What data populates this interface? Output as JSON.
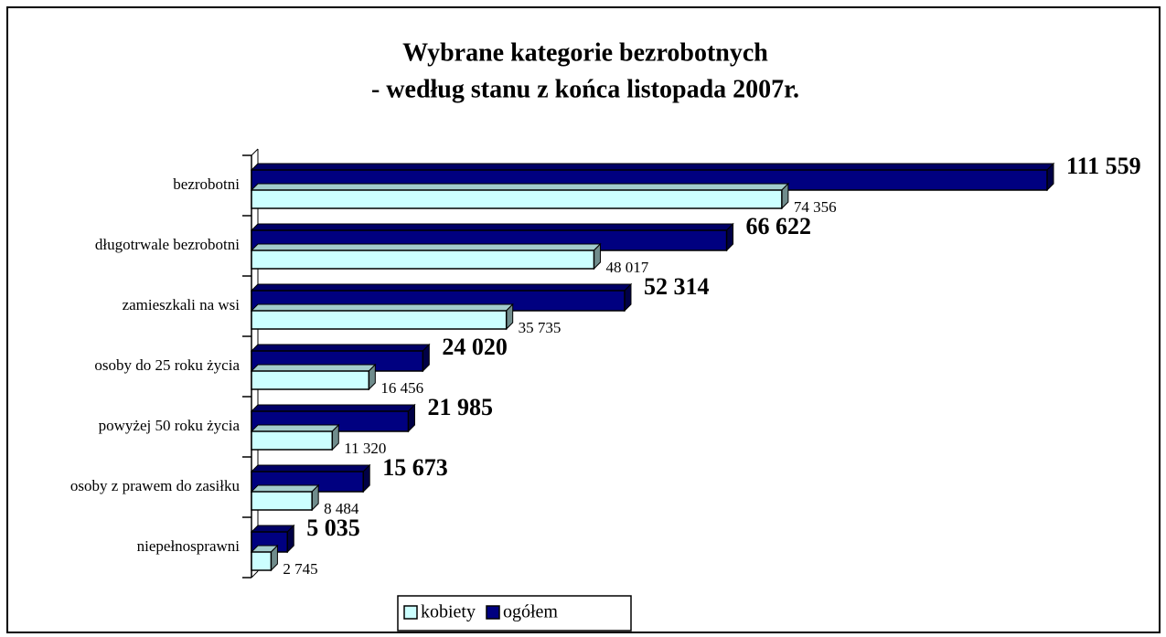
{
  "chart_data": {
    "type": "bar",
    "orientation": "horizontal",
    "title": "Wybrane kategorie bezrobotnych",
    "subtitle": "- według stanu z końca listopada 2007r.",
    "categories": [
      "bezrobotni",
      "długotrwale bezrobotni",
      "zamieszkali na wsi",
      "osoby do 25 roku życia",
      "powyżej 50 roku życia",
      "osoby z prawem do zasiłku",
      "niepełnosprawni"
    ],
    "series": [
      {
        "name": "kobiety",
        "color": "#ccffff",
        "values": [
          74356,
          48017,
          35735,
          16456,
          11320,
          8484,
          2745
        ],
        "value_labels": [
          "74 356",
          "48 017",
          "35 735",
          "16 456",
          "11 320",
          "8 484",
          "2 745"
        ]
      },
      {
        "name": "ogółem",
        "color": "#000080",
        "values": [
          111559,
          66622,
          52314,
          24020,
          21985,
          15673,
          5035
        ],
        "value_labels": [
          "111 559",
          "66 622",
          "52 314",
          "24 020",
          "21 985",
          "15 673",
          "5 035"
        ]
      }
    ],
    "legend": "bottom"
  }
}
